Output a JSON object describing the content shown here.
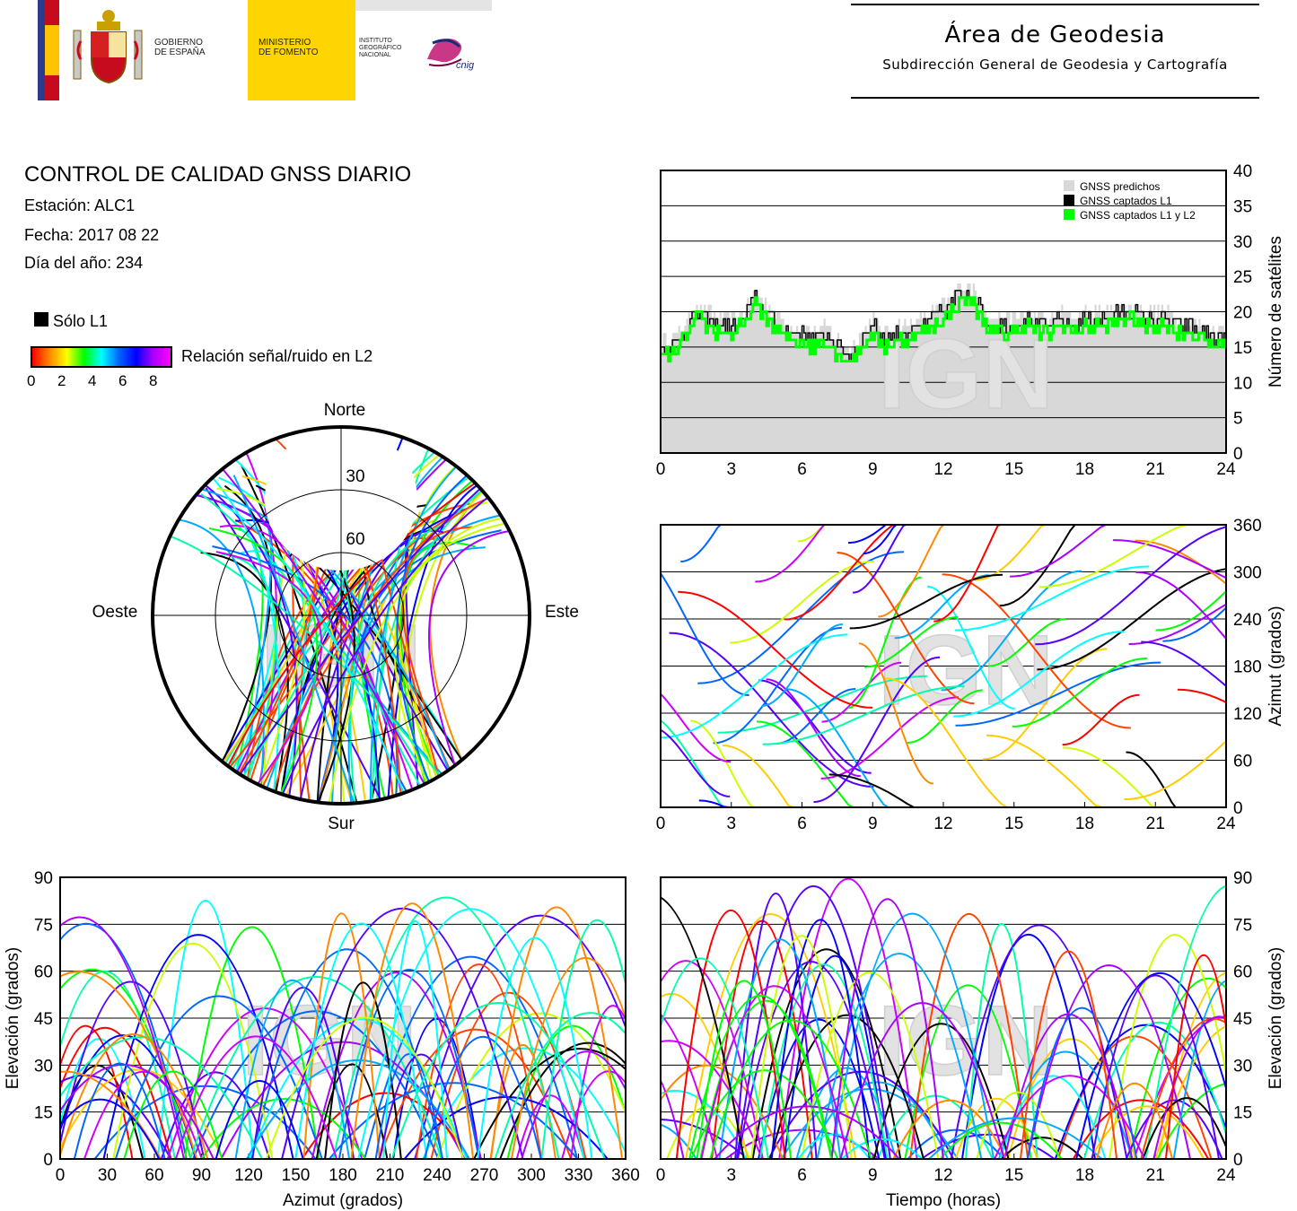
{
  "header": {
    "gov_label": "GOBIERNO\nDE ESPAÑA",
    "ministry_label": "MINISTERIO\nDE FOMENTO",
    "institute_label": "INSTITUTO\nGEOGRÁFICO\nNACIONAL",
    "cnig_label": "cnig",
    "area_title": "Área de Geodesia",
    "area_subtitle": "Subdirección General de Geodesia y Cartografía"
  },
  "info": {
    "title": "CONTROL DE CALIDAD GNSS DIARIO",
    "station": "Estación: ALC1",
    "date": "Fecha: 2017 08 22",
    "doy": "Día del año: 234"
  },
  "legend": {
    "l1_only": "Sólo L1",
    "snr_label": "Relación señal/ruido en L2",
    "snr_ticks": [
      "0",
      "2",
      "4",
      "6",
      "8"
    ],
    "colorbar": [
      "#ff0000",
      "#ff8800",
      "#ffff00",
      "#00ff00",
      "#00ffff",
      "#0066ff",
      "#0000ff",
      "#aa00ff",
      "#ff00ff"
    ]
  },
  "watermark": "IGN",
  "colors": {
    "predicted": "#d8d8d8",
    "l1": "#000000",
    "l1l2": "#00ff00"
  },
  "chart_data": [
    {
      "type": "area",
      "id": "satellite_count",
      "ylabel": "Número de satélites",
      "xlim": [
        0,
        24
      ],
      "ylim": [
        0,
        40
      ],
      "xticks": [
        0,
        3,
        6,
        9,
        12,
        15,
        18,
        21,
        24
      ],
      "yticks": [
        0,
        5,
        10,
        15,
        20,
        25,
        30,
        35,
        40
      ],
      "legend_position": "top-right",
      "series": [
        {
          "name": "GNSS predichos",
          "color": "#d8d8d8",
          "x": [
            0,
            0.5,
            1,
            1.5,
            2,
            2.5,
            3,
            3.5,
            4,
            4.5,
            5,
            5.5,
            6,
            6.5,
            7,
            7.5,
            8,
            8.5,
            9,
            9.5,
            10,
            10.5,
            11,
            11.5,
            12,
            12.5,
            13,
            13.5,
            14,
            14.5,
            15,
            15.5,
            16,
            16.5,
            17,
            17.5,
            18,
            18.5,
            19,
            19.5,
            20,
            20.5,
            21,
            21.5,
            22,
            22.5,
            23,
            23.5,
            24
          ],
          "y": [
            16,
            16,
            18,
            21,
            20,
            19,
            19,
            20,
            23,
            21,
            19,
            18,
            18,
            17,
            18,
            16,
            15,
            17,
            19,
            17,
            18,
            18,
            19,
            20,
            21,
            23,
            24,
            22,
            19,
            19,
            19,
            20,
            19,
            19,
            20,
            19,
            20,
            20,
            20,
            21,
            21,
            20,
            20,
            20,
            19,
            19,
            18,
            17,
            18
          ]
        },
        {
          "name": "GNSS captados L1",
          "color": "#000000",
          "x": [
            0,
            0.5,
            1,
            1.5,
            2,
            2.5,
            3,
            3.5,
            4,
            4.5,
            5,
            5.5,
            6,
            6.5,
            7,
            7.5,
            8,
            8.5,
            9,
            9.5,
            10,
            10.5,
            11,
            11.5,
            12,
            12.5,
            13,
            13.5,
            14,
            14.5,
            15,
            15.5,
            16,
            16.5,
            17,
            17.5,
            18,
            18.5,
            19,
            19.5,
            20,
            20.5,
            21,
            21.5,
            22,
            22.5,
            23,
            23.5,
            24
          ],
          "y": [
            15,
            15,
            17,
            20,
            19,
            18,
            18,
            19,
            22,
            20,
            18,
            17,
            17,
            16,
            17,
            15,
            14,
            16,
            18,
            16,
            17,
            17,
            18,
            19,
            20,
            22,
            23,
            21,
            18,
            18,
            18,
            19,
            18,
            18,
            19,
            18,
            19,
            19,
            19,
            20,
            20,
            19,
            19,
            19,
            18,
            18,
            17,
            16,
            17
          ]
        },
        {
          "name": "GNSS captados L1 y L2",
          "color": "#00ff00",
          "x": [
            0,
            0.5,
            1,
            1.5,
            2,
            2.5,
            3,
            3.5,
            4,
            4.5,
            5,
            5.5,
            6,
            6.5,
            7,
            7.5,
            8,
            8.5,
            9,
            9.5,
            10,
            10.5,
            11,
            11.5,
            12,
            12.5,
            13,
            13.5,
            14,
            14.5,
            15,
            15.5,
            16,
            16.5,
            17,
            17.5,
            18,
            18.5,
            19,
            19.5,
            20,
            20.5,
            21,
            21.5,
            22,
            22.5,
            23,
            23.5,
            24
          ],
          "y": [
            14,
            14,
            16,
            19,
            18,
            17,
            17,
            18,
            21,
            19,
            17,
            16,
            16,
            15,
            16,
            14,
            13,
            15,
            17,
            15,
            16,
            16,
            17,
            18,
            19,
            21,
            22,
            20,
            17,
            17,
            17,
            18,
            17,
            17,
            18,
            17,
            18,
            18,
            18,
            19,
            19,
            18,
            18,
            18,
            17,
            17,
            16,
            15,
            16
          ]
        }
      ]
    },
    {
      "type": "scatter",
      "id": "azimuth_time",
      "ylabel": "Azimut (grados)",
      "xlim": [
        0,
        24
      ],
      "ylim": [
        0,
        360
      ],
      "xticks": [
        0,
        3,
        6,
        9,
        12,
        15,
        18,
        21,
        24
      ],
      "yticks": [
        0,
        60,
        120,
        180,
        240,
        300,
        360
      ]
    },
    {
      "type": "scatter",
      "id": "skyplot",
      "labels": {
        "north": "Norte",
        "south": "Sur",
        "east": "Este",
        "west": "Oeste"
      },
      "rings": [
        "30",
        "60"
      ]
    },
    {
      "type": "scatter",
      "id": "elevation_azimuth",
      "xlabel": "Azimut (grados)",
      "ylabel": "Elevación (grados)",
      "xlim": [
        0,
        360
      ],
      "ylim": [
        0,
        90
      ],
      "xticks": [
        0,
        30,
        60,
        90,
        120,
        150,
        180,
        210,
        240,
        270,
        300,
        330,
        360
      ],
      "yticks": [
        0,
        15,
        30,
        45,
        60,
        75,
        90
      ]
    },
    {
      "type": "scatter",
      "id": "elevation_time",
      "xlabel": "Tiempo (horas)",
      "ylabel": "Elevación (grados)",
      "xlim": [
        0,
        24
      ],
      "ylim": [
        0,
        90
      ],
      "xticks": [
        0,
        3,
        6,
        9,
        12,
        15,
        18,
        21,
        24
      ],
      "yticks": [
        0,
        15,
        30,
        45,
        60,
        75,
        90
      ]
    }
  ]
}
